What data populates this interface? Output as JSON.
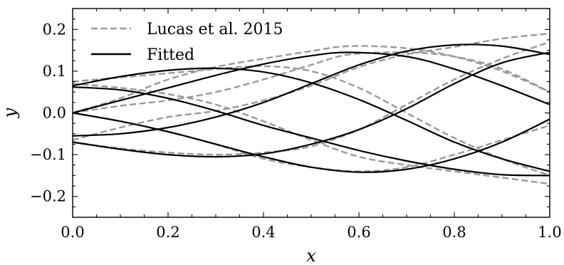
{
  "chart_data": {
    "type": "line",
    "title": "",
    "xlabel": "x",
    "ylabel": "y",
    "xlim": [
      0.0,
      1.0
    ],
    "ylim": [
      -0.25,
      0.25
    ],
    "xticks": [
      0.0,
      0.2,
      0.4,
      0.6,
      0.8,
      1.0
    ],
    "xtick_labels": [
      "0.0",
      "0.2",
      "0.4",
      "0.6",
      "0.8",
      "1.0"
    ],
    "yticks": [
      -0.2,
      -0.1,
      0.0,
      0.1,
      0.2
    ],
    "ytick_labels": [
      "−0.2",
      "−0.1",
      "0.0",
      "0.1",
      "0.2"
    ],
    "grid": false,
    "legend": {
      "placement": "top-left",
      "entries": [
        {
          "label": "Lucas et al. 2015",
          "color": "#999999",
          "style": "dashed"
        },
        {
          "label": "Fitted",
          "color": "#000000",
          "style": "solid"
        }
      ]
    },
    "series": [
      {
        "legend": 0,
        "x": [
          0.0,
          0.1,
          0.2,
          0.3,
          0.4,
          0.5,
          0.58,
          0.7,
          0.8,
          0.9,
          1.0
        ],
        "y": [
          0.0,
          0.017,
          0.03,
          0.05,
          0.08,
          0.115,
          0.14,
          0.145,
          0.135,
          0.105,
          0.05
        ]
      },
      {
        "legend": 0,
        "x": [
          0.0,
          0.1,
          0.2,
          0.3,
          0.4,
          0.5,
          0.6,
          0.7,
          0.8,
          0.9,
          1.0
        ],
        "y": [
          0.075,
          0.085,
          0.095,
          0.105,
          0.112,
          0.1,
          0.06,
          0.0,
          -0.06,
          -0.11,
          -0.15
        ]
      },
      {
        "legend": 0,
        "x": [
          0.0,
          0.1,
          0.2,
          0.3,
          0.4,
          0.5,
          0.58,
          0.7,
          0.8,
          0.9,
          1.0
        ],
        "y": [
          0.0,
          0.035,
          0.08,
          0.11,
          0.13,
          0.148,
          0.16,
          0.155,
          0.135,
          0.1,
          0.05
        ]
      },
      {
        "legend": 0,
        "x": [
          0.0,
          0.1,
          0.2,
          0.3,
          0.4,
          0.5,
          0.6,
          0.7,
          0.8,
          0.9,
          1.0
        ],
        "y": [
          -0.07,
          -0.085,
          -0.095,
          -0.1,
          -0.095,
          -0.08,
          -0.04,
          0.02,
          0.08,
          0.13,
          0.17
        ]
      },
      {
        "legend": 0,
        "x": [
          0.0,
          0.1,
          0.2,
          0.3,
          0.4,
          0.5,
          0.6,
          0.7,
          0.8,
          0.9,
          1.0
        ],
        "y": [
          0.07,
          0.06,
          0.045,
          0.02,
          -0.02,
          -0.065,
          -0.105,
          -0.125,
          -0.14,
          -0.155,
          -0.17
        ]
      },
      {
        "legend": 0,
        "x": [
          0.0,
          0.1,
          0.2,
          0.3,
          0.4,
          0.5,
          0.6,
          0.7,
          0.8,
          0.9,
          1.0
        ],
        "y": [
          0.0,
          -0.02,
          -0.045,
          -0.075,
          -0.11,
          -0.13,
          -0.14,
          -0.13,
          -0.1,
          -0.065,
          -0.03
        ]
      },
      {
        "legend": 0,
        "x": [
          0.0,
          0.1,
          0.2,
          0.3,
          0.4,
          0.5,
          0.6,
          0.7,
          0.8,
          0.9,
          1.0
        ],
        "y": [
          -0.065,
          -0.035,
          -0.01,
          0.005,
          0.03,
          0.065,
          0.11,
          0.14,
          0.158,
          0.178,
          0.19
        ]
      },
      {
        "legend": 1,
        "x": [
          0.0,
          0.1,
          0.2,
          0.3,
          0.4,
          0.5,
          0.58,
          0.7,
          0.8,
          0.9,
          1.0
        ],
        "y": [
          0.0,
          0.03,
          0.06,
          0.09,
          0.117,
          0.137,
          0.145,
          0.135,
          0.105,
          0.065,
          0.02
        ]
      },
      {
        "legend": 1,
        "x": [
          0.0,
          0.1,
          0.2,
          0.3,
          0.4,
          0.5,
          0.6,
          0.7,
          0.8,
          0.9,
          1.0
        ],
        "y": [
          0.065,
          0.087,
          0.102,
          0.107,
          0.098,
          0.072,
          0.032,
          -0.018,
          -0.07,
          -0.11,
          -0.14
        ]
      },
      {
        "legend": 1,
        "x": [
          0.0,
          0.1,
          0.2,
          0.3,
          0.4,
          0.5,
          0.6,
          0.7,
          0.8,
          0.9,
          1.0
        ],
        "y": [
          -0.07,
          -0.087,
          -0.1,
          -0.105,
          -0.098,
          -0.075,
          -0.04,
          0.01,
          0.07,
          0.12,
          0.145
        ]
      },
      {
        "legend": 1,
        "x": [
          0.0,
          0.1,
          0.2,
          0.3,
          0.4,
          0.5,
          0.6,
          0.7,
          0.8,
          0.9,
          1.0
        ],
        "y": [
          0.062,
          0.055,
          0.035,
          0.005,
          -0.03,
          -0.06,
          -0.09,
          -0.115,
          -0.135,
          -0.148,
          -0.15
        ]
      },
      {
        "legend": 1,
        "x": [
          0.0,
          0.1,
          0.2,
          0.3,
          0.4,
          0.5,
          0.6,
          0.7,
          0.8,
          0.9,
          1.0
        ],
        "y": [
          0.0,
          -0.02,
          -0.045,
          -0.075,
          -0.105,
          -0.13,
          -0.142,
          -0.135,
          -0.11,
          -0.07,
          -0.015
        ]
      },
      {
        "legend": 1,
        "x": [
          0.0,
          0.1,
          0.2,
          0.3,
          0.4,
          0.5,
          0.6,
          0.7,
          0.8,
          0.9,
          1.0
        ],
        "y": [
          -0.055,
          -0.05,
          -0.035,
          -0.01,
          0.025,
          0.07,
          0.115,
          0.148,
          0.163,
          0.16,
          0.14
        ]
      }
    ]
  }
}
